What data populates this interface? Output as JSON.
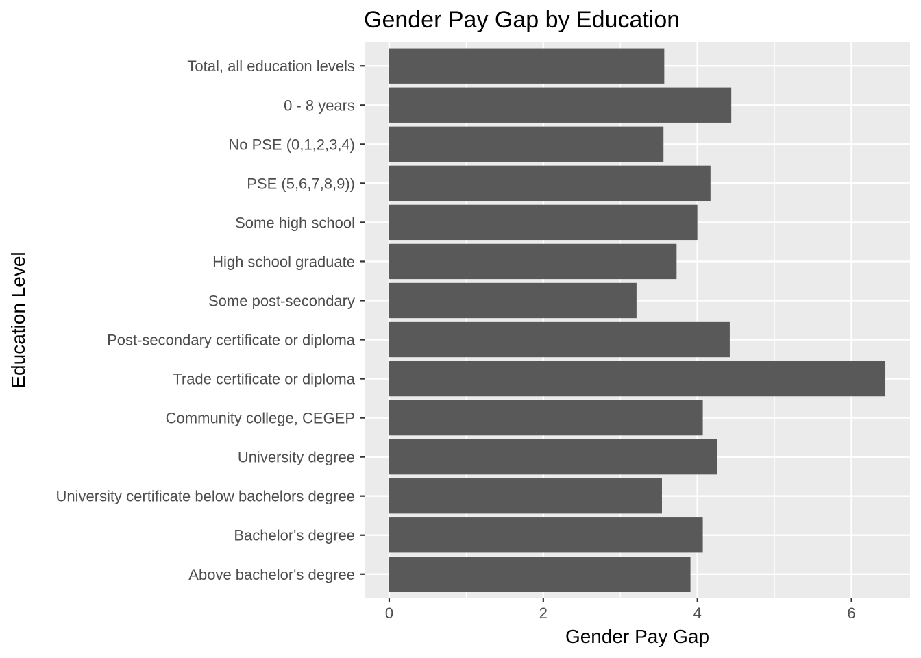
{
  "chart_data": {
    "type": "bar",
    "orientation": "horizontal",
    "title": "Gender Pay Gap by Education",
    "xlabel": "Gender Pay Gap",
    "ylabel": "Education Level",
    "categories": [
      "Total, all education levels",
      "0 - 8  years",
      "No PSE  (0,1,2,3,4)",
      "PSE  (5,6,7,8,9))",
      "Some high school",
      "High school graduate",
      "Some post-secondary",
      "Post-secondary certificate or diploma",
      "Trade certificate or diploma",
      "Community college, CEGEP",
      "University degree",
      "University certificate below bachelors degree",
      "Bachelor's degree",
      "Above bachelor's degree"
    ],
    "values": [
      3.57,
      4.44,
      3.56,
      4.17,
      4.0,
      3.73,
      3.21,
      4.42,
      6.44,
      4.07,
      4.26,
      3.54,
      4.07,
      3.91
    ],
    "xlim": [
      -0.32,
      6.76
    ],
    "xticks": [
      0,
      2,
      4,
      6
    ],
    "grid": true,
    "colors": {
      "bar": "#595959",
      "panel": "#ebebeb",
      "grid": "#ffffff"
    }
  }
}
